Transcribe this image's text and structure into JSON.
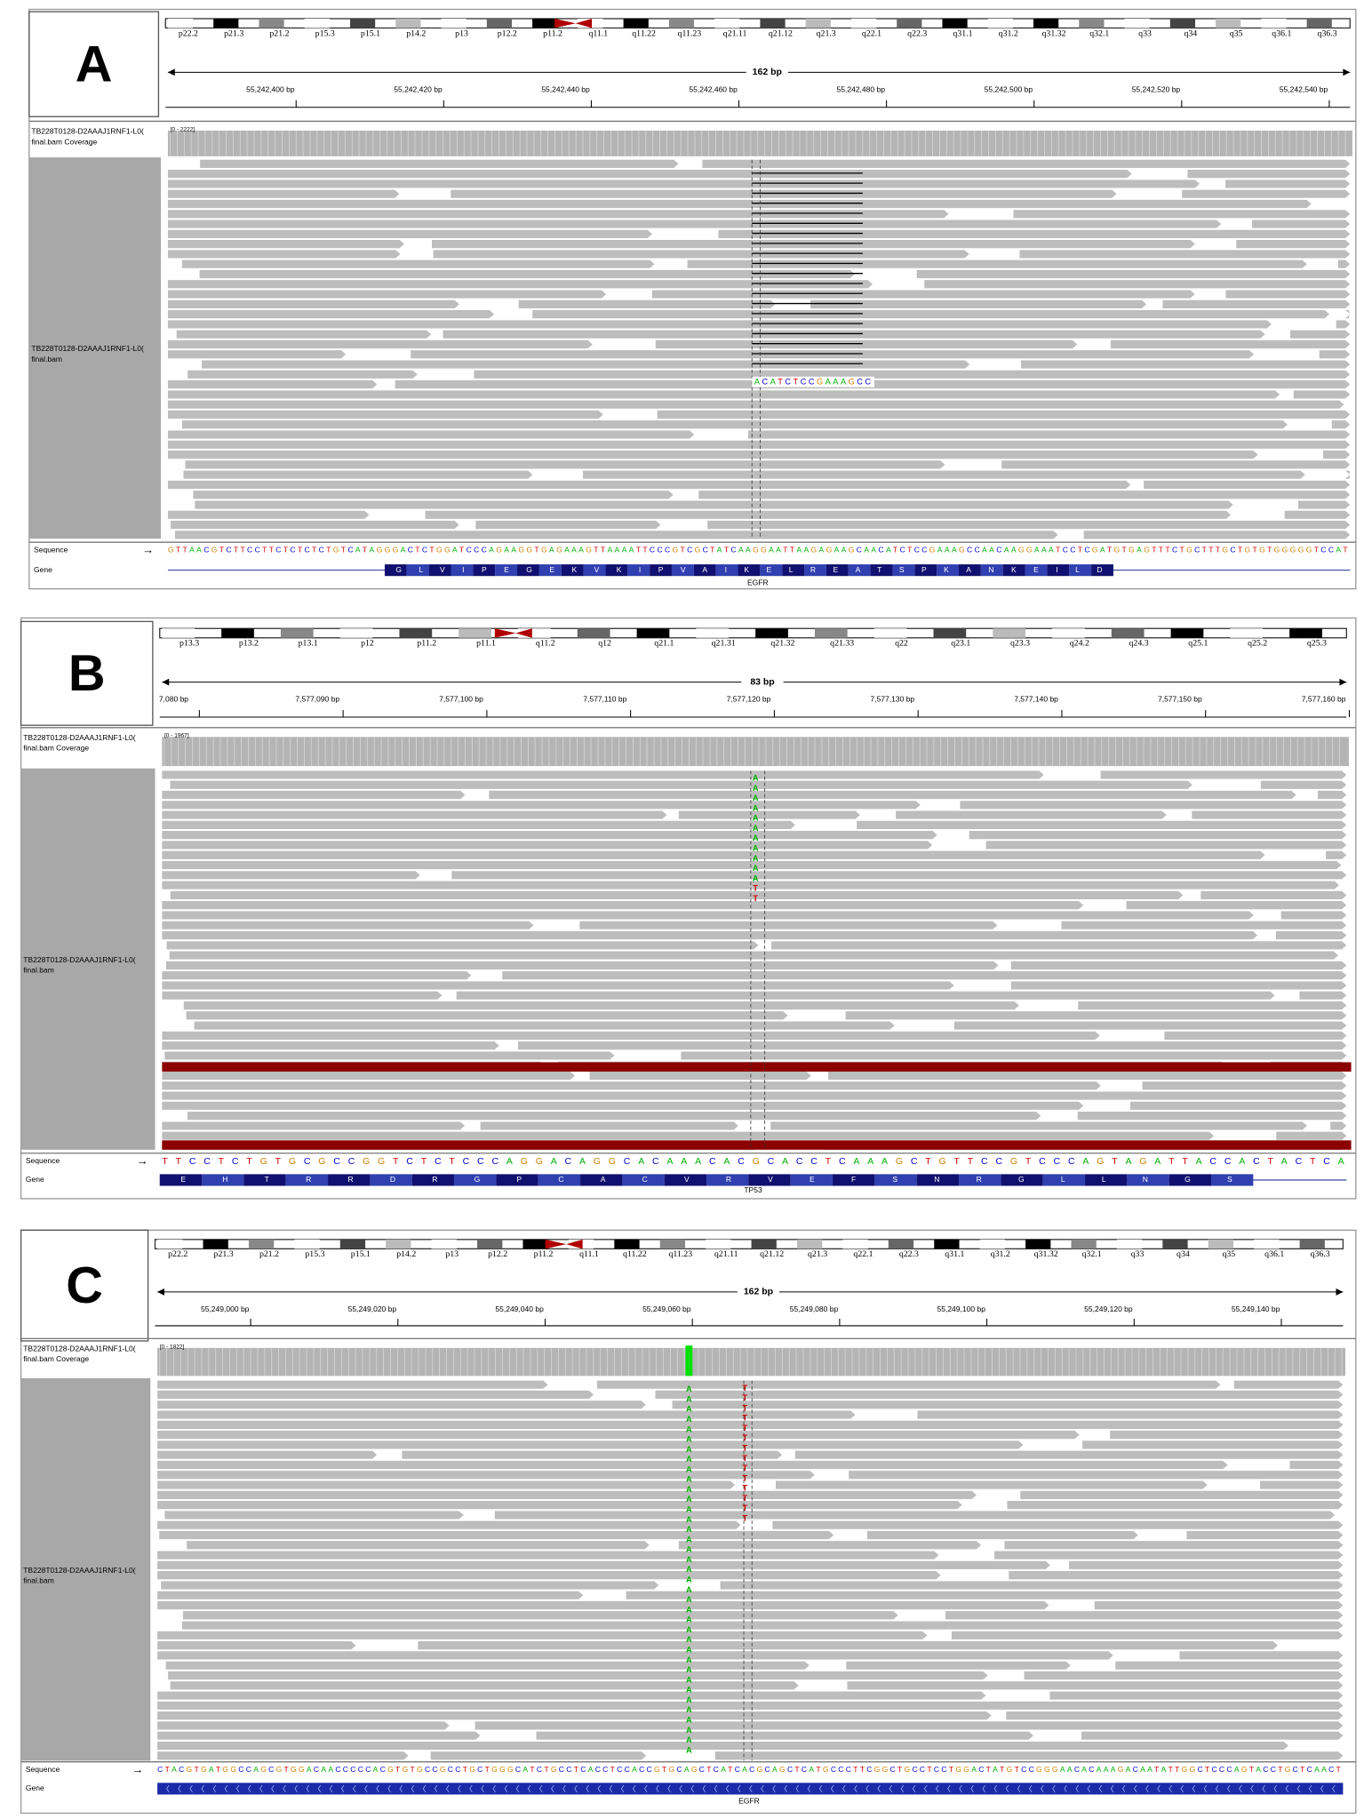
{
  "panels": [
    {
      "label": "A",
      "cytobands": [
        "p22.2",
        "p21.3",
        "p21.2",
        "p15.3",
        "p15.1",
        "p14.2",
        "p13",
        "p12.2",
        "p11.2",
        "q11.1",
        "q11.22",
        "q11.23",
        "q21.11",
        "q21.12",
        "q21.3",
        "q22.1",
        "q22.3",
        "q31.1",
        "q31.2",
        "q31.32",
        "q32.1",
        "q33",
        "q34",
        "q35",
        "q36.1",
        "q36.3"
      ],
      "span": "162 bp",
      "ruler": [
        "55,242,400 bp",
        "55,242,420 bp",
        "55,242,440 bp",
        "55,242,460 bp",
        "55,242,480 bp",
        "55,242,500 bp",
        "55,242,520 bp",
        "55,242,540 bp"
      ],
      "coverage_track": [
        "TB228T0128-D2AAAJ1RNF1-L0(",
        "final.bam Coverage"
      ],
      "coverage_range": "[0 - 2222]",
      "reads_track": [
        "TB228T0128-D2AAAJ1RNF1-L0(",
        "final.bam"
      ],
      "sequence_label": "Sequence",
      "gene_label": "Gene",
      "sequence": "GTTAACGTCTTCCTTCTCTCTCTGTCATAGGGACTCTGGATCCCAGAAGGTGAGAAAGTTAAAATTCCCGTCGCTATCAAGGAATTAAGAGAAGCAACATCTCCGAAAGCCAACAAGGAAATCCTCGATGTGAGTTTCTGCTTTGCTGTGTGGGGGTCCAT",
      "protein": "GLVIPEGEKVKIPVAIKELREATSPKANKEILD",
      "gene": "EGFR",
      "insertion": "ACATCTCCGAAAGCC"
    },
    {
      "label": "B",
      "cytobands": [
        "p13.3",
        "p13.2",
        "p13.1",
        "p12",
        "p11.2",
        "p11.1",
        "q11.2",
        "q12",
        "q21.1",
        "q21.31",
        "q21.32",
        "q21.33",
        "q22",
        "q23.1",
        "q23.3",
        "q24.2",
        "q24.3",
        "q25.1",
        "q25.2",
        "q25.3"
      ],
      "span": "83 bp",
      "ruler": [
        "7,080 bp",
        "7,577,090 bp",
        "7,577,100 bp",
        "7,577,110 bp",
        "7,577,120 bp",
        "7,577,130 bp",
        "7,577,140 bp",
        "7,577,150 bp",
        "7,577,160 bp"
      ],
      "coverage_track": [
        "TB228T0128-D2AAAJ1RNF1-L0(",
        "final.bam Coverage"
      ],
      "coverage_range": "[0 - 1967]",
      "reads_track": [
        "TB228T0128-D2AAAJ1RNF1-L0(",
        "final.bam"
      ],
      "sequence_label": "Sequence",
      "gene_label": "Gene",
      "sequence": "TTCCTCTGTGCGCCGGTCTCTCCCAGGACAGGCACAAACACGCACCTCAAAGCTGTTCCGTCCCAGTAGATTACCACTACTCA",
      "protein": "EHTRRDRGPCACVRVEFSNRGLLNGS",
      "gene": "TP53",
      "variant_column": "AAAAAAAAAAATT"
    },
    {
      "label": "C",
      "cytobands": [
        "p22.2",
        "p21.3",
        "p21.2",
        "p15.3",
        "p15.1",
        "p14.2",
        "p13",
        "p12.2",
        "p11.2",
        "q11.1",
        "q11.22",
        "q11.23",
        "q21.11",
        "q21.12",
        "q21.3",
        "q22.1",
        "q22.3",
        "q31.1",
        "q31.2",
        "q31.32",
        "q32.1",
        "q33",
        "q34",
        "q35",
        "q36.1",
        "q36.3"
      ],
      "span": "162 bp",
      "ruler": [
        "55,249,000 bp",
        "55,249,020 bp",
        "55,249,040 bp",
        "55,249,060 bp",
        "55,249,080 bp",
        "55,249,100 bp",
        "55,249,120 bp",
        "55,249,140 bp"
      ],
      "coverage_track": [
        "TB228T0128-D2AAAJ1RNF1-L0(",
        "final.bam Coverage"
      ],
      "coverage_range": "[0 - 1822]",
      "reads_track": [
        "TB228T0128-D2AAAJ1RNF1-L0(",
        "final.bam"
      ],
      "sequence_label": "Sequence",
      "gene_label": "Gene",
      "sequence": "CTACGTGATGGCCAGCGTGGACAACCCCCACGTGTGCCGCCTGCTGGGCATCTGCCTCACCTCCACCGTGCAGCTCATCACGCAGCTCATGCCCTTCGGCTGCCTCCTGGACTATGTCCGGGAACACAAAGACAATATTGGCTCCCAGTACCTGCTCAACT",
      "gene": "EGFR",
      "variant_column": "AAAAAAAAAAAAAAAAAAAAAAAAAAAAAAAAAAAAA",
      "second_column": "TTTTTTTTTTTTTT"
    }
  ]
}
